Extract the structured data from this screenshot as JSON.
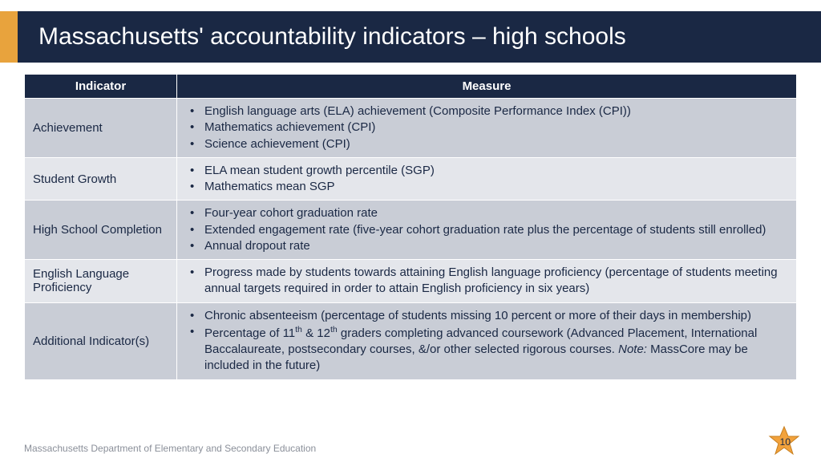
{
  "colors": {
    "header_bg": "#1a2844",
    "accent": "#e8a33d",
    "row_a": "#c9cdd6",
    "row_b": "#e4e6eb",
    "text_dark": "#1a2844",
    "footer_gray": "#8a8f99",
    "star_fill": "#f2a23c",
    "star_stroke": "#c77f1f"
  },
  "title": "Massachusetts' accountability indicators – high schools",
  "table": {
    "headers": {
      "col1": "Indicator",
      "col2": "Measure"
    },
    "rows": [
      {
        "indicator": "Achievement",
        "measures": [
          "English language arts (ELA) achievement (Composite Performance Index (CPI))",
          "Mathematics achievement (CPI)",
          "Science achievement (CPI)"
        ]
      },
      {
        "indicator": "Student Growth",
        "measures": [
          "ELA mean student growth percentile (SGP)",
          "Mathematics mean SGP"
        ]
      },
      {
        "indicator": "High School Completion",
        "measures": [
          "Four-year cohort graduation rate",
          "Extended engagement rate (five-year cohort graduation rate plus the percentage of students still enrolled)",
          "Annual dropout rate"
        ]
      },
      {
        "indicator": "English Language Proficiency",
        "measures": [
          "Progress made by students towards attaining English language proficiency (percentage of students meeting annual targets required in order to attain English proficiency in six years)"
        ]
      },
      {
        "indicator": "Additional Indicator(s)",
        "measures_html": [
          "Chronic absenteeism (percentage of students missing 10 percent or more of their days in membership)",
          "Percentage of 11<sup>th</sup> & 12<sup>th</sup> graders completing advanced coursework (Advanced Placement, International Baccalaureate, postsecondary courses, &/or other selected rigorous courses. <span class=\"note-it\">Note:</span> MassCore may be included in the future)"
        ]
      }
    ]
  },
  "footer": "Massachusetts Department of Elementary and Secondary Education",
  "page_number": "10"
}
